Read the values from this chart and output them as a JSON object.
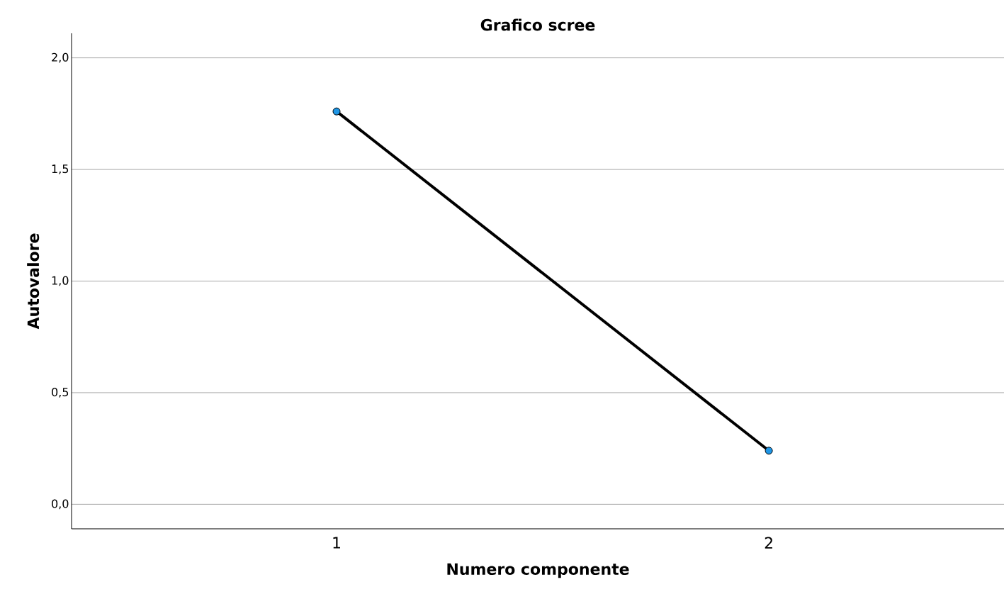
{
  "chart_data": {
    "type": "line",
    "title": "Grafico scree",
    "xlabel": "Numero componente",
    "ylabel": "Autovalore",
    "categories": [
      "1",
      "2"
    ],
    "series": [
      {
        "color": "#000000",
        "values": [
          1.76,
          0.24
        ]
      }
    ],
    "ylim": [
      -0.11,
      2.11
    ],
    "yticks": [
      {
        "value": 0,
        "label": "0,0"
      },
      {
        "value": 0.5,
        "label": "0,5"
      },
      {
        "value": 1,
        "label": "1,0"
      },
      {
        "value": 1.5,
        "label": "1,5"
      },
      {
        "value": 2,
        "label": "2,0"
      }
    ],
    "grid": "y",
    "marker": "circle",
    "line_style": "solid"
  }
}
